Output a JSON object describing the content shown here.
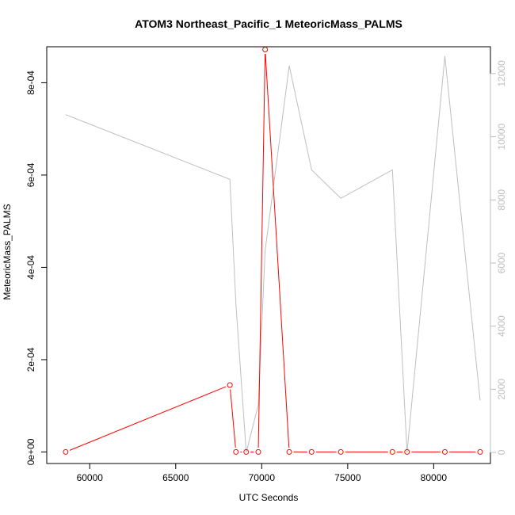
{
  "chart_data": {
    "type": "line",
    "title": "ATOM3 Northeast_Pacific_1 MeteoricMass_PALMS",
    "xlabel": "UTC Seconds",
    "ylabel": "MeteoricMass_PALMS",
    "xlim": [
      57500,
      83300
    ],
    "ylim": [
      -2.5e-05,
      0.000878
    ],
    "y2lim": [
      -350,
      12850
    ],
    "x_ticks": [
      60000,
      65000,
      70000,
      75000,
      80000
    ],
    "x_tick_labels": [
      "60000",
      "65000",
      "70000",
      "75000",
      "80000"
    ],
    "y_ticks": [
      0,
      0.0002,
      0.0004,
      0.0006,
      0.0008
    ],
    "y_tick_labels": [
      "0e+00",
      "2e-04",
      "4e-04",
      "6e-04",
      "8e-04"
    ],
    "y2_ticks": [
      0,
      2000,
      4000,
      6000,
      8000,
      10000,
      12000
    ],
    "y2_tick_labels": [
      "0",
      "2000",
      "4000",
      "6000",
      "8000",
      "10000",
      "12000"
    ],
    "grid": false,
    "series": [
      {
        "axis": "left",
        "color": "#ff0000",
        "marker": "open-circle",
        "x": [
          58600,
          68150,
          68500,
          69100,
          69800,
          70200,
          71600,
          72900,
          74600,
          77600,
          78450,
          80650,
          82700
        ],
        "y": [
          0,
          0.000145,
          0,
          0,
          0,
          0.000872,
          0,
          0,
          0,
          0,
          0,
          0,
          0
        ]
      },
      {
        "axis": "right",
        "color": "#bebebe",
        "marker": "none",
        "x": [
          58600,
          68150,
          68500,
          69100,
          69800,
          70200,
          71600,
          72900,
          74600,
          77600,
          78450,
          80650,
          82700
        ],
        "y": [
          10700,
          8650,
          4700,
          0,
          1500,
          6400,
          12250,
          8950,
          8050,
          8950,
          0,
          12550,
          1650
        ]
      }
    ]
  }
}
